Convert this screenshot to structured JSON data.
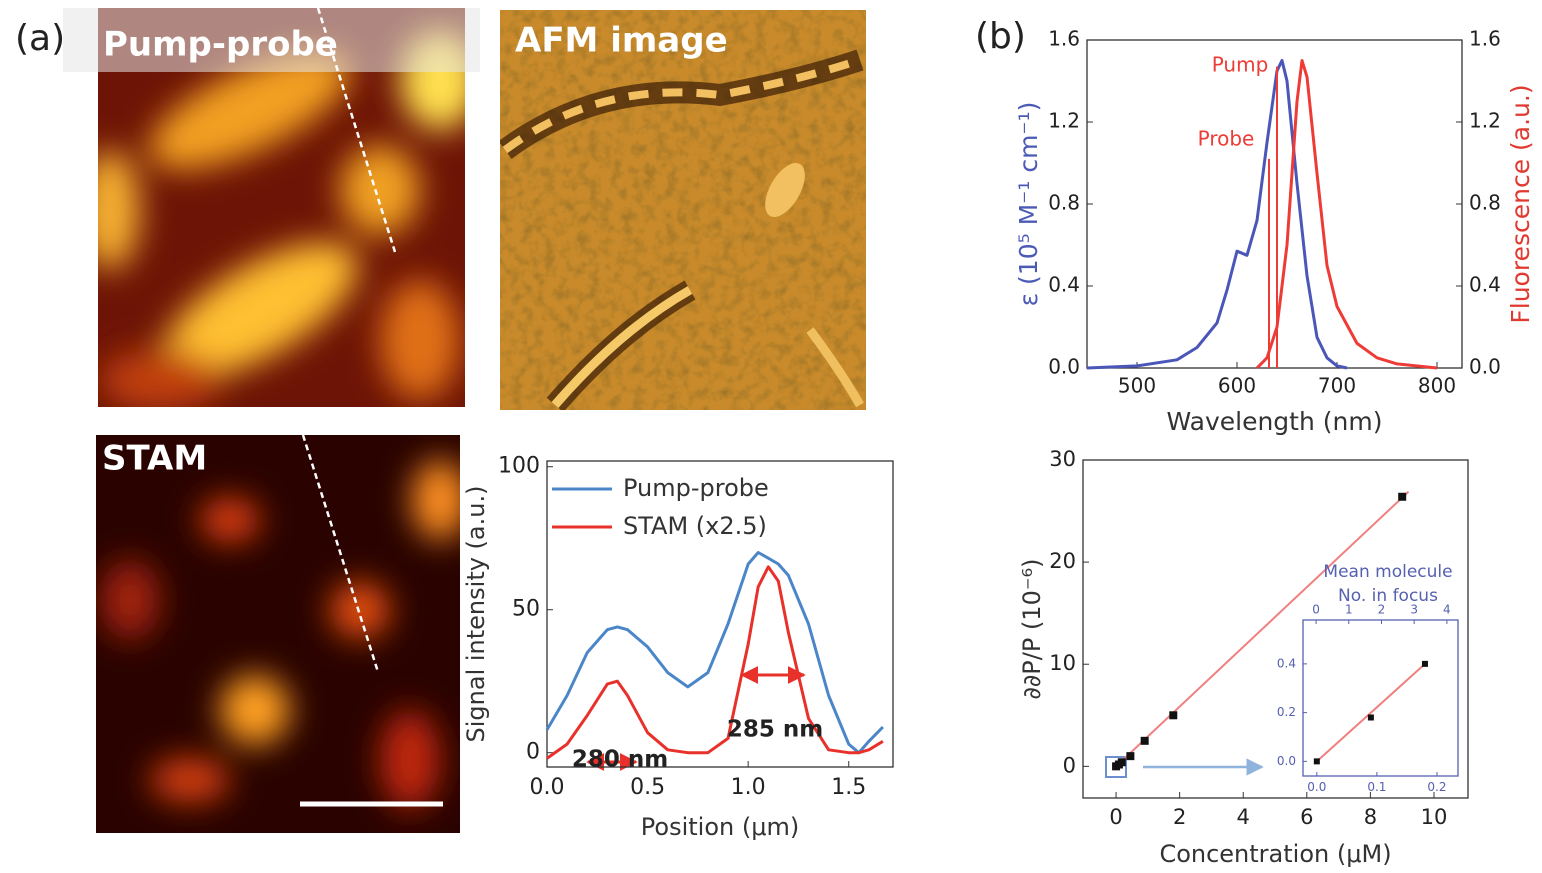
{
  "panels": {
    "labels": [
      "(a)",
      "(b)"
    ],
    "images": [
      "Pump-probe",
      "AFM image",
      "STAM"
    ]
  },
  "chart_data": [
    {
      "type": "line",
      "xlabel": "Position (μm)",
      "ylabel": "Signal intensity (a.u.)",
      "x": [
        0,
        0.1,
        0.2,
        0.3,
        0.35,
        0.4,
        0.5,
        0.6,
        0.7,
        0.8,
        0.9,
        1.0,
        1.05,
        1.1,
        1.15,
        1.2,
        1.3,
        1.4,
        1.5,
        1.55,
        1.6,
        1.67
      ],
      "series": [
        {
          "name": "Pump-probe",
          "color": "#4a86c8",
          "values": [
            8,
            20,
            35,
            43,
            44,
            43,
            37,
            28,
            23,
            28,
            45,
            66,
            70,
            68,
            66,
            62,
            45,
            20,
            3,
            0,
            4,
            9
          ]
        },
        {
          "name": "STAM (x2.5)",
          "color": "#e8312a",
          "values": [
            -2,
            3,
            13,
            24,
            25,
            20,
            7,
            1,
            0,
            0,
            5,
            38,
            58,
            65,
            60,
            42,
            12,
            1,
            0,
            0,
            1,
            4
          ]
        }
      ],
      "xlim": [
        0,
        1.72
      ],
      "ylim": [
        -5,
        102
      ],
      "xticks": [
        {
          "value": 0,
          "label": "0.0"
        },
        {
          "value": 0.5,
          "label": "0.5"
        },
        {
          "value": 1,
          "label": "1.0"
        },
        {
          "value": 1.5,
          "label": "1.5"
        }
      ],
      "yticks": [
        0,
        50,
        100
      ],
      "annotations": [
        "280 nm",
        "285 nm"
      ],
      "legend": "upper left"
    },
    {
      "type": "line",
      "xlabel": "Wavelength (nm)",
      "ylabel": "ε (10⁵ M⁻¹ cm⁻¹)",
      "y2label": "Fluorescence (a.u.)",
      "ylabel_color": "#4b5bb5",
      "y2label_color": "#e03a30",
      "series": [
        {
          "color": "#4a56b8",
          "x": [
            450,
            500,
            540,
            560,
            580,
            590,
            600,
            610,
            620,
            630,
            640,
            645,
            650,
            660,
            670,
            680,
            690,
            700,
            710
          ],
          "values": [
            0,
            0.01,
            0.04,
            0.1,
            0.22,
            0.38,
            0.57,
            0.55,
            0.72,
            1.1,
            1.45,
            1.5,
            1.4,
            0.9,
            0.45,
            0.15,
            0.05,
            0.01,
            0
          ]
        },
        {
          "color": "#ee3b35",
          "axis": "y2",
          "x": [
            620,
            630,
            640,
            650,
            660,
            665,
            670,
            680,
            690,
            700,
            720,
            740,
            760,
            800
          ],
          "values": [
            0,
            0.05,
            0.2,
            0.6,
            1.3,
            1.5,
            1.42,
            0.95,
            0.5,
            0.3,
            0.12,
            0.05,
            0.02,
            0
          ]
        }
      ],
      "markers": [
        {
          "label": "Pump",
          "x": 640,
          "y": 1.47
        },
        {
          "label": "Probe",
          "x": 632,
          "y": 1.02
        }
      ],
      "marker_color": "#ee3b35",
      "xlim": [
        450,
        825
      ],
      "ylim": [
        0,
        1.6
      ],
      "y2lim": [
        0,
        1.6
      ],
      "xticks": [
        500,
        600,
        700,
        800
      ],
      "yticks": [
        {
          "value": 0,
          "label": "0.0"
        },
        {
          "value": 0.4,
          "label": "0.4"
        },
        {
          "value": 0.8,
          "label": "0.8"
        },
        {
          "value": 1.2,
          "label": "1.2"
        },
        {
          "value": 1.6,
          "label": "1.6"
        }
      ],
      "y2ticks": [
        {
          "value": 0,
          "label": "0.0"
        },
        {
          "value": 0.4,
          "label": "0.4"
        },
        {
          "value": 0.8,
          "label": "0.8"
        },
        {
          "value": 1.2,
          "label": "1.2"
        },
        {
          "value": 1.6,
          "label": "1.6"
        }
      ]
    },
    {
      "type": "scatter",
      "xlabel": "Concentration (μM)",
      "ylabel": "∂∂P/P (10⁻⁶)",
      "x": [
        0,
        0.09,
        0.18,
        0.45,
        0.9,
        1.8,
        9
      ],
      "values": [
        0,
        0.18,
        0.4,
        1.0,
        2.5,
        5.0,
        26.4
      ],
      "color": "#111111",
      "fit": {
        "x": [
          0,
          9.2
        ],
        "values": [
          0,
          26.9
        ],
        "color": "#f08080"
      },
      "xlim": [
        -1.04,
        11.07
      ],
      "ylim": [
        -3.1,
        30
      ],
      "xticks": [
        0,
        2,
        4,
        6,
        8,
        10
      ],
      "yticks": [
        0,
        10,
        20,
        30
      ]
    },
    {
      "type": "scatter",
      "title_lines": [
        "Mean molecule",
        "No. in focus"
      ],
      "axis_color": "#5560b0",
      "x": [
        0,
        0.09,
        0.18
      ],
      "values": [
        0,
        0.18,
        0.4
      ],
      "color": "#111111",
      "fit": {
        "x": [
          0,
          0.18
        ],
        "values": [
          0,
          0.4
        ],
        "color": "#f08080"
      },
      "xlim": [
        -0.023,
        0.235
      ],
      "ylim": [
        -0.06,
        0.58
      ],
      "x2lim": [
        -0.4,
        4.34
      ],
      "xticks": [
        {
          "value": 0,
          "label": "0.0"
        },
        {
          "value": 0.1,
          "label": "0.1"
        },
        {
          "value": 0.2,
          "label": "0.2"
        }
      ],
      "yticks": [
        {
          "value": 0,
          "label": "0.0"
        },
        {
          "value": 0.2,
          "label": "0.2"
        },
        {
          "value": 0.4,
          "label": "0.4"
        }
      ],
      "x2ticks": [
        0,
        1,
        2,
        3,
        4
      ]
    }
  ]
}
